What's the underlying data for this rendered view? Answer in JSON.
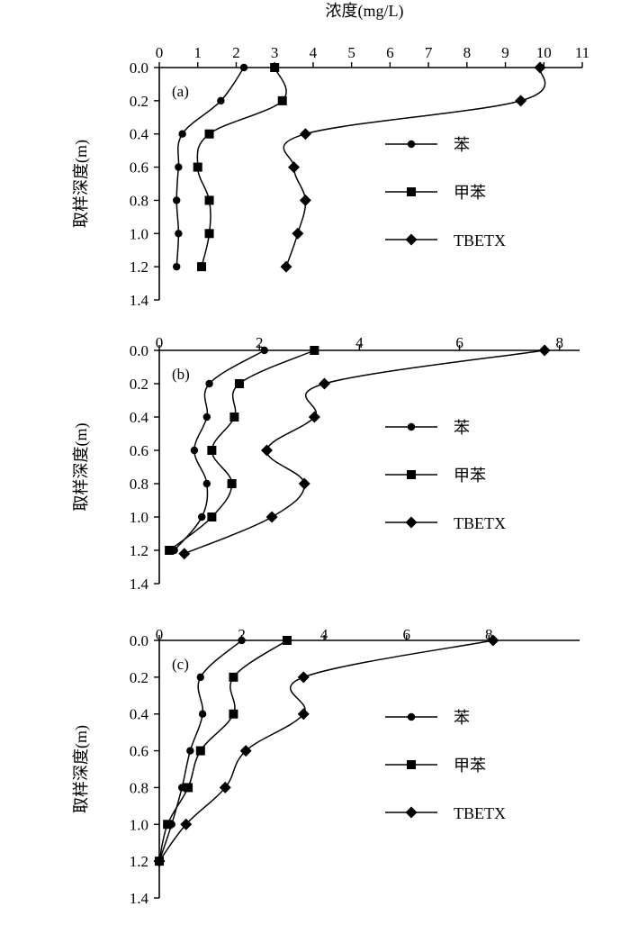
{
  "chart_data": [
    {
      "type": "line",
      "panel_label": "(a)",
      "title": "浓度(mg/L)",
      "xlabel": "浓度(mg/L)",
      "ylabel": "取样深度(m)",
      "x_axis_position": "top",
      "y_inverted": true,
      "xlim": [
        0,
        11
      ],
      "ylim": [
        0,
        1.4
      ],
      "x_ticks": [
        "0",
        "1",
        "2",
        "3",
        "4",
        "5",
        "6",
        "7",
        "8",
        "9",
        "10",
        "11"
      ],
      "y_ticks": [
        "0.0",
        "0.2",
        "0.4",
        "0.6",
        "0.8",
        "1.0",
        "1.2",
        "1.4"
      ],
      "legend_position": "right",
      "series": [
        {
          "name": "苯",
          "marker": "circle",
          "x": [
            2.2,
            1.6,
            0.6,
            0.5,
            0.45,
            0.5,
            0.45
          ],
          "y": [
            0.0,
            0.2,
            0.4,
            0.6,
            0.8,
            1.0,
            1.2
          ]
        },
        {
          "name": "甲苯",
          "marker": "square",
          "x": [
            3.0,
            3.2,
            1.3,
            1.0,
            1.3,
            1.3,
            1.1
          ],
          "y": [
            0.0,
            0.2,
            0.4,
            0.6,
            0.8,
            1.0,
            1.2
          ]
        },
        {
          "name": "TBETX",
          "marker": "diamond",
          "x": [
            9.9,
            9.4,
            3.8,
            3.5,
            3.8,
            3.6,
            3.3
          ],
          "y": [
            0.0,
            0.2,
            0.4,
            0.6,
            0.8,
            1.0,
            1.2
          ]
        }
      ]
    },
    {
      "type": "line",
      "panel_label": "(b)",
      "xlabel": "",
      "ylabel": "取样深度(m)",
      "x_axis_position": "top",
      "y_inverted": true,
      "xlim": [
        0,
        8.4
      ],
      "ylim": [
        0,
        1.4
      ],
      "x_ticks": [
        "0",
        "2",
        "4",
        "6",
        "8"
      ],
      "x_tick_values": [
        0,
        2,
        4,
        6,
        8
      ],
      "y_ticks": [
        "0.0",
        "0.2",
        "0.4",
        "0.6",
        "0.8",
        "1.0",
        "1.2",
        "1.4"
      ],
      "legend_position": "right",
      "series": [
        {
          "name": "苯",
          "marker": "circle",
          "x": [
            2.1,
            1.0,
            0.95,
            0.7,
            0.95,
            0.85,
            0.3
          ],
          "y": [
            0.0,
            0.2,
            0.4,
            0.6,
            0.8,
            1.0,
            1.2
          ]
        },
        {
          "name": "甲苯",
          "marker": "square",
          "x": [
            3.1,
            1.6,
            1.5,
            1.05,
            1.45,
            1.05,
            0.2
          ],
          "y": [
            0.0,
            0.2,
            0.4,
            0.6,
            0.8,
            1.0,
            1.2
          ]
        },
        {
          "name": "TBETX",
          "marker": "diamond",
          "x": [
            7.7,
            3.3,
            3.1,
            2.15,
            2.9,
            2.25,
            0.5
          ],
          "y": [
            0.0,
            0.2,
            0.4,
            0.6,
            0.8,
            1.0,
            1.22
          ]
        }
      ]
    },
    {
      "type": "line",
      "panel_label": "(c)",
      "xlabel": "",
      "ylabel": "取样深度(m)",
      "x_axis_position": "top",
      "y_inverted": true,
      "xlim": [
        0,
        10.2
      ],
      "ylim": [
        0,
        1.4
      ],
      "x_ticks": [
        "0",
        "2",
        "4",
        "6",
        "8"
      ],
      "x_tick_values": [
        0,
        2,
        4,
        6,
        8
      ],
      "y_ticks": [
        "0.0",
        "0.2",
        "0.4",
        "0.6",
        "0.8",
        "1.0",
        "1.2",
        "1.4"
      ],
      "legend_position": "right",
      "series": [
        {
          "name": "苯",
          "marker": "circle",
          "x": [
            2.0,
            1.0,
            1.05,
            0.75,
            0.55,
            0.3,
            0.0
          ],
          "y": [
            0.0,
            0.2,
            0.4,
            0.6,
            0.8,
            1.0,
            1.2
          ]
        },
        {
          "name": "甲苯",
          "marker": "square",
          "x": [
            3.1,
            1.8,
            1.8,
            1.0,
            0.7,
            0.2,
            0.0
          ],
          "y": [
            0.0,
            0.2,
            0.4,
            0.6,
            0.8,
            1.0,
            1.2
          ]
        },
        {
          "name": "TBETX",
          "marker": "diamond",
          "x": [
            8.1,
            3.5,
            3.5,
            2.1,
            1.6,
            0.65,
            0.0
          ],
          "y": [
            0.0,
            0.2,
            0.4,
            0.6,
            0.8,
            1.0,
            1.2
          ]
        }
      ]
    }
  ]
}
